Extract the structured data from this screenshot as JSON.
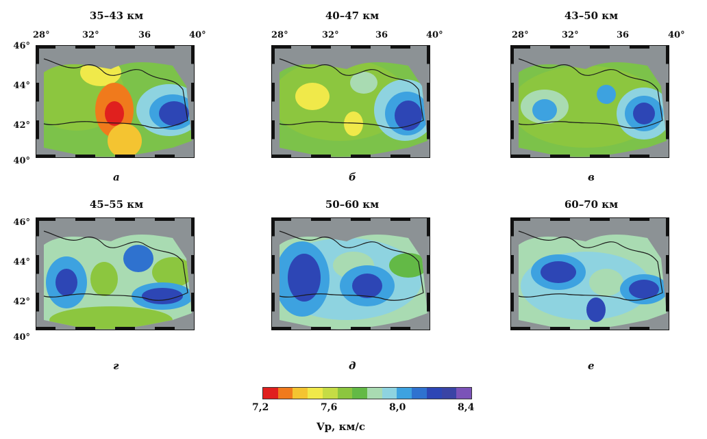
{
  "panels": [
    {
      "id": "a",
      "title": "35–43 км",
      "label": "а"
    },
    {
      "id": "b",
      "title": "40–47 км",
      "label": "б"
    },
    {
      "id": "c",
      "title": "43–50 км",
      "label": "в"
    },
    {
      "id": "d",
      "title": "45–55 км",
      "label": "г"
    },
    {
      "id": "e",
      "title": "50–60 км",
      "label": "д"
    },
    {
      "id": "f",
      "title": "60–70 км",
      "label": "е"
    }
  ],
  "lon_labels": [
    "28°",
    "32°",
    "36",
    "40°"
  ],
  "lat_labels": [
    "46°",
    "44°",
    "42°",
    "40°"
  ],
  "colorbar": {
    "ticks": [
      "7,2",
      "7,6",
      "8,0",
      "8,4"
    ],
    "label": "Vp, км/с",
    "colors": [
      "#e0201e",
      "#f07a1c",
      "#f4c431",
      "#f0e94a",
      "#c5dc45",
      "#8cc63f",
      "#63b946",
      "#a9dbb2",
      "#8ed3e0",
      "#3da2e0",
      "#2f72cf",
      "#2d46b5",
      "#3a44a5",
      "#7b53b8"
    ]
  },
  "colors": {
    "land": "#8c9295",
    "sea_base": "#7cc24a",
    "coast": "#1a1a1a"
  }
}
